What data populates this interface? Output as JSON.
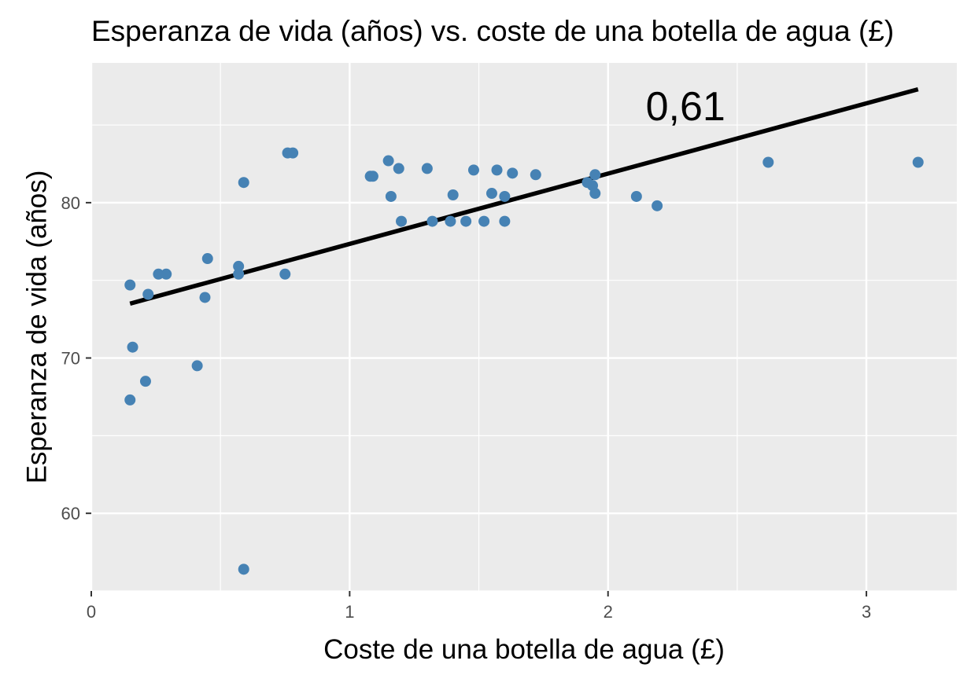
{
  "chart_data": {
    "type": "scatter",
    "title": "Esperanza de vida (años) vs. coste de una botella de agua (£)",
    "xlabel": "Coste de una botella de agua (£)",
    "ylabel": "Esperanza de vida (años)",
    "xlim": [
      0,
      3.35
    ],
    "ylim": [
      55,
      89
    ],
    "x_ticks": [
      0,
      1,
      2,
      3
    ],
    "x_tick_labels": [
      "0",
      "1",
      "2",
      "3"
    ],
    "y_ticks": [
      60,
      70,
      80
    ],
    "y_tick_labels": [
      "60",
      "70",
      "80"
    ],
    "grid": true,
    "annotation": "0,61",
    "colors": {
      "points": "#4682B4",
      "line": "#000000",
      "panel": "#EBEBEB",
      "grid": "#FFFFFF"
    },
    "trend_line": {
      "x": [
        0.15,
        3.2
      ],
      "y": [
        73.5,
        87.3
      ]
    },
    "points": [
      {
        "x": 0.15,
        "y": 74.7
      },
      {
        "x": 0.16,
        "y": 70.7
      },
      {
        "x": 0.15,
        "y": 67.3
      },
      {
        "x": 0.21,
        "y": 68.5
      },
      {
        "x": 0.22,
        "y": 74.1
      },
      {
        "x": 0.26,
        "y": 75.4
      },
      {
        "x": 0.29,
        "y": 75.4
      },
      {
        "x": 0.41,
        "y": 69.5
      },
      {
        "x": 0.44,
        "y": 73.9
      },
      {
        "x": 0.45,
        "y": 76.4
      },
      {
        "x": 0.57,
        "y": 75.9
      },
      {
        "x": 0.57,
        "y": 75.4
      },
      {
        "x": 0.59,
        "y": 81.3
      },
      {
        "x": 0.59,
        "y": 56.4
      },
      {
        "x": 0.75,
        "y": 75.4
      },
      {
        "x": 0.76,
        "y": 83.2
      },
      {
        "x": 0.78,
        "y": 83.2
      },
      {
        "x": 1.08,
        "y": 81.7
      },
      {
        "x": 1.09,
        "y": 81.7
      },
      {
        "x": 1.15,
        "y": 82.7
      },
      {
        "x": 1.16,
        "y": 80.4
      },
      {
        "x": 1.19,
        "y": 82.2
      },
      {
        "x": 1.2,
        "y": 78.8
      },
      {
        "x": 1.3,
        "y": 82.2
      },
      {
        "x": 1.32,
        "y": 78.8
      },
      {
        "x": 1.39,
        "y": 78.8
      },
      {
        "x": 1.4,
        "y": 80.5
      },
      {
        "x": 1.45,
        "y": 78.8
      },
      {
        "x": 1.48,
        "y": 82.1
      },
      {
        "x": 1.52,
        "y": 78.8
      },
      {
        "x": 1.55,
        "y": 80.6
      },
      {
        "x": 1.57,
        "y": 82.1
      },
      {
        "x": 1.6,
        "y": 80.4
      },
      {
        "x": 1.6,
        "y": 78.8
      },
      {
        "x": 1.63,
        "y": 81.9
      },
      {
        "x": 1.72,
        "y": 81.8
      },
      {
        "x": 1.92,
        "y": 81.3
      },
      {
        "x": 1.94,
        "y": 81.1
      },
      {
        "x": 1.95,
        "y": 81.8
      },
      {
        "x": 1.95,
        "y": 80.6
      },
      {
        "x": 2.11,
        "y": 80.4
      },
      {
        "x": 2.19,
        "y": 79.8
      },
      {
        "x": 2.62,
        "y": 82.6
      },
      {
        "x": 3.2,
        "y": 82.6
      }
    ]
  }
}
